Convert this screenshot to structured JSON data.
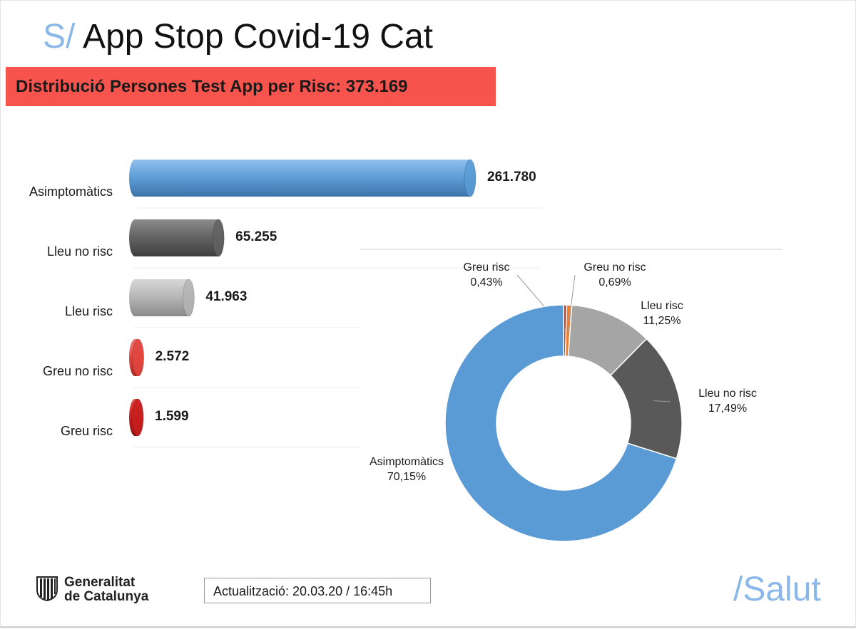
{
  "slide": {
    "title_prefix": "S/",
    "title": "App Stop Covid-19 Cat",
    "banner": "Distribució Persones Test App per Risc: 373.169",
    "footer": {
      "logo_line1": "Generalitat",
      "logo_line2": "de Catalunya",
      "update": "Actualització: 20.03.20 / 16:45h",
      "brand": "/Salut"
    }
  },
  "chart_data": [
    {
      "type": "bar",
      "orientation": "horizontal",
      "title": "",
      "categories": [
        "Asimptomàtics",
        "Lleu no risc",
        "Lleu risc",
        "Greu no risc",
        "Greu risc"
      ],
      "values": [
        261780,
        65255,
        41963,
        2572,
        1599
      ],
      "value_labels": [
        "261.780",
        "65.255",
        "41.963",
        "2.572",
        "1.599"
      ],
      "colors": [
        "#5b9bd5",
        "#626262",
        "#b4b4b4",
        "#e0453e",
        "#c81e1e"
      ],
      "style": "3d-cylinder",
      "grid": true
    },
    {
      "type": "pie",
      "variant": "donut",
      "title": "",
      "slices": [
        {
          "label": "Greu risc",
          "value": 0.43,
          "label_text": "0,43%",
          "color": "#c0392b"
        },
        {
          "label": "Greu no risc",
          "value": 0.69,
          "label_text": "0,69%",
          "color": "#ed7d31"
        },
        {
          "label": "Lleu risc",
          "value": 11.25,
          "label_text": "11,25%",
          "color": "#a5a5a5"
        },
        {
          "label": "Lleu no risc",
          "value": 17.49,
          "label_text": "17,49%",
          "color": "#595959"
        },
        {
          "label": "Asimptomàtics",
          "value": 70.15,
          "label_text": "70,15%",
          "color": "#5b9bd5"
        }
      ]
    }
  ]
}
